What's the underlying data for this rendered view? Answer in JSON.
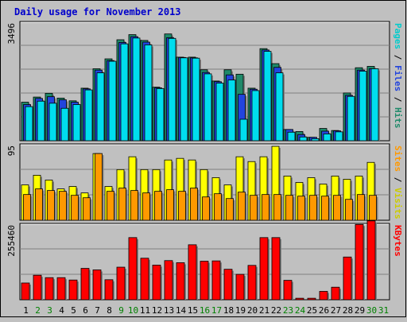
{
  "title": "Daily usage for November 2013",
  "colors": {
    "background": "#c0c0c0",
    "title": "#0000cc",
    "plot_bg": "#c0c0c0",
    "hits": "#1f8a6a",
    "files": "#2244dd",
    "pages": "#00ddee",
    "visits": "#ffff00",
    "sites": "#ff9900",
    "kbytes": "#ff0000",
    "weekday_label": "#000000",
    "weekend_label": "#008000"
  },
  "chart_data": [
    {
      "type": "bar",
      "name": "pages-files-hits",
      "ymax_label": "3496",
      "ylim": [
        0,
        3496
      ],
      "right_label": [
        {
          "text": "Pages",
          "color": "#00cccc"
        },
        {
          "text": " / ",
          "color": "#000000"
        },
        {
          "text": "Files",
          "color": "#2244dd"
        },
        {
          "text": " / ",
          "color": "#000000"
        },
        {
          "text": "Hits",
          "color": "#1f8a6a"
        }
      ],
      "categories": [
        "1",
        "2",
        "3",
        "4",
        "5",
        "6",
        "7",
        "8",
        "9",
        "10",
        "11",
        "12",
        "13",
        "14",
        "15",
        "16",
        "17",
        "18",
        "19",
        "20",
        "21",
        "22",
        "23",
        "24",
        "25",
        "26",
        "27",
        "28",
        "29",
        "30",
        "31"
      ],
      "series": [
        {
          "name": "Hits",
          "color": "#1f8a6a",
          "values": [
            1130,
            1280,
            1390,
            1250,
            1170,
            1540,
            2110,
            2400,
            2960,
            3110,
            2940,
            1570,
            3130,
            2450,
            2450,
            2080,
            1750,
            2080,
            1950,
            1540,
            2700,
            2260,
            330,
            270,
            100,
            360,
            300,
            1400,
            2140,
            2180,
            0
          ]
        },
        {
          "name": "Files",
          "color": "#2244dd",
          "values": [
            1060,
            1240,
            1290,
            1200,
            1130,
            1520,
            2070,
            2350,
            2880,
            3050,
            2890,
            1550,
            3020,
            2440,
            2430,
            2000,
            1730,
            1930,
            1360,
            1510,
            2660,
            2150,
            330,
            180,
            100,
            280,
            290,
            1330,
            2070,
            2110,
            0
          ]
        },
        {
          "name": "Pages",
          "color": "#00ddee",
          "values": [
            1000,
            1160,
            1100,
            950,
            1060,
            1490,
            1990,
            2330,
            2840,
            3010,
            2810,
            1530,
            3000,
            2430,
            2420,
            1960,
            1690,
            1780,
            630,
            1470,
            2620,
            1990,
            250,
            110,
            60,
            200,
            260,
            1300,
            2040,
            2110,
            0
          ]
        }
      ]
    },
    {
      "type": "bar",
      "name": "visits-sites",
      "ymax_label": "95",
      "ylim": [
        0,
        95
      ],
      "right_label": [
        {
          "text": "Sites",
          "color": "#ff9900"
        },
        {
          "text": " / ",
          "color": "#000000"
        },
        {
          "text": "Visits",
          "color": "#cccc00"
        }
      ],
      "categories": [
        "1",
        "2",
        "3",
        "4",
        "5",
        "6",
        "7",
        "8",
        "9",
        "10",
        "11",
        "12",
        "13",
        "14",
        "15",
        "16",
        "17",
        "18",
        "19",
        "20",
        "21",
        "22",
        "23",
        "24",
        "25",
        "26",
        "27",
        "28",
        "29",
        "30",
        "31"
      ],
      "series": [
        {
          "name": "Visits",
          "color": "#ffff00",
          "values": [
            44,
            56,
            50,
            39,
            42,
            34,
            83,
            42,
            63,
            79,
            63,
            63,
            75,
            77,
            75,
            63,
            53,
            44,
            79,
            73,
            79,
            92,
            55,
            47,
            53,
            45,
            55,
            51,
            55,
            72,
            0
          ]
        },
        {
          "name": "Sites",
          "color": "#ff9900",
          "values": [
            32,
            39,
            37,
            36,
            31,
            28,
            83,
            36,
            40,
            37,
            34,
            36,
            38,
            36,
            40,
            29,
            33,
            27,
            35,
            31,
            32,
            32,
            31,
            30,
            31,
            30,
            31,
            26,
            32,
            31,
            0
          ]
        }
      ]
    },
    {
      "type": "bar",
      "name": "kbytes",
      "ymax_label": "255460",
      "ylim": [
        0,
        255460
      ],
      "right_label": [
        {
          "text": "KBytes",
          "color": "#ff0000"
        }
      ],
      "categories": [
        "1",
        "2",
        "3",
        "4",
        "5",
        "6",
        "7",
        "8",
        "9",
        "10",
        "11",
        "12",
        "13",
        "14",
        "15",
        "16",
        "17",
        "18",
        "19",
        "20",
        "21",
        "22",
        "23",
        "24",
        "25",
        "26",
        "27",
        "28",
        "29",
        "30",
        "31"
      ],
      "series": [
        {
          "name": "KBytes",
          "color": "#ff0000",
          "values": [
            56000,
            82000,
            74000,
            74000,
            66000,
            105000,
            100000,
            67000,
            109000,
            208000,
            139000,
            116000,
            131000,
            124000,
            184000,
            129000,
            130000,
            102000,
            85000,
            115000,
            208000,
            208000,
            65000,
            5000,
            5000,
            28000,
            42000,
            143000,
            252000,
            264000,
            0
          ]
        }
      ]
    }
  ],
  "x_labels": [
    {
      "text": "1",
      "weekend": false
    },
    {
      "text": "2",
      "weekend": true
    },
    {
      "text": "3",
      "weekend": true
    },
    {
      "text": "4",
      "weekend": false
    },
    {
      "text": "5",
      "weekend": false
    },
    {
      "text": "6",
      "weekend": false
    },
    {
      "text": "7",
      "weekend": false
    },
    {
      "text": "8",
      "weekend": false
    },
    {
      "text": "9",
      "weekend": true
    },
    {
      "text": "10",
      "weekend": true
    },
    {
      "text": "11",
      "weekend": false
    },
    {
      "text": "12",
      "weekend": false
    },
    {
      "text": "13",
      "weekend": false
    },
    {
      "text": "14",
      "weekend": false
    },
    {
      "text": "15",
      "weekend": false
    },
    {
      "text": "16",
      "weekend": true
    },
    {
      "text": "17",
      "weekend": true
    },
    {
      "text": "18",
      "weekend": false
    },
    {
      "text": "19",
      "weekend": false
    },
    {
      "text": "20",
      "weekend": false
    },
    {
      "text": "21",
      "weekend": false
    },
    {
      "text": "22",
      "weekend": false
    },
    {
      "text": "23",
      "weekend": true
    },
    {
      "text": "24",
      "weekend": true
    },
    {
      "text": "25",
      "weekend": false
    },
    {
      "text": "26",
      "weekend": false
    },
    {
      "text": "27",
      "weekend": false
    },
    {
      "text": "28",
      "weekend": false
    },
    {
      "text": "29",
      "weekend": false
    },
    {
      "text": "30",
      "weekend": true
    },
    {
      "text": "31",
      "weekend": true
    }
  ]
}
